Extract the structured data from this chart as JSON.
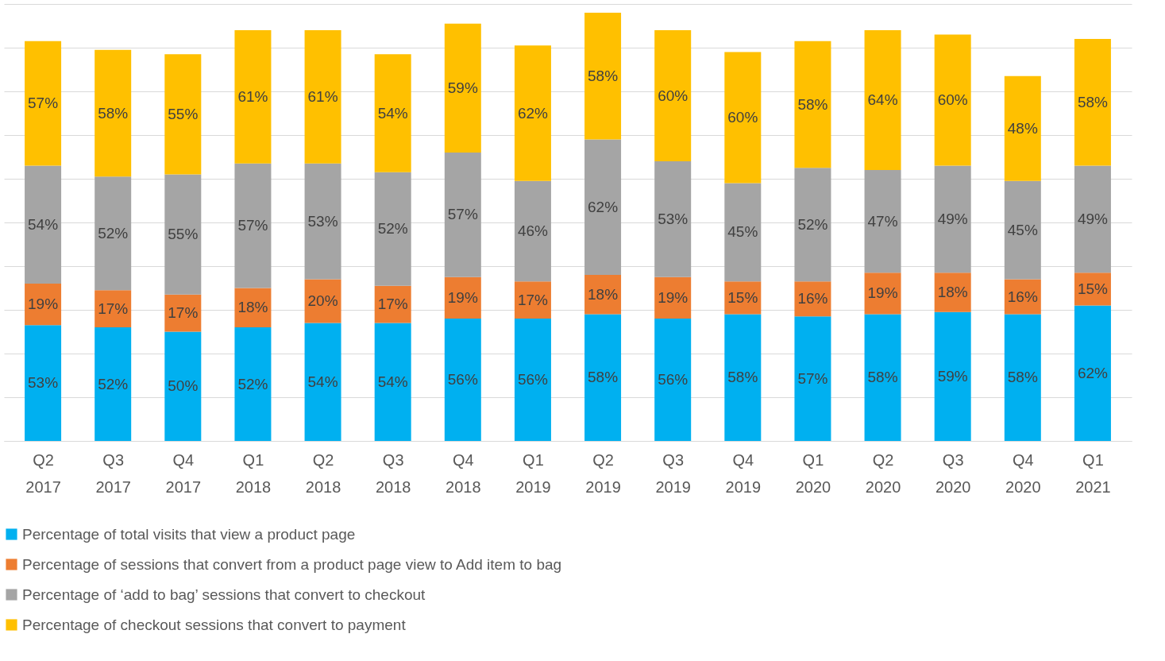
{
  "chart_data": {
    "type": "bar",
    "stacked": true,
    "categories": [
      "Q2 2017",
      "Q3 2017",
      "Q4 2017",
      "Q1 2018",
      "Q2 2018",
      "Q3 2018",
      "Q4 2018",
      "Q1 2019",
      "Q2 2019",
      "Q3 2019",
      "Q4 2019",
      "Q1 2020",
      "Q2 2020",
      "Q3 2020",
      "Q4 2020",
      "Q1 2021"
    ],
    "series": [
      {
        "name": "Percentage of total visits that view a product page",
        "color": "#00b0f0",
        "values": [
          53,
          52,
          50,
          52,
          54,
          54,
          56,
          56,
          58,
          56,
          58,
          57,
          58,
          59,
          58,
          62
        ],
        "value_labels": [
          "53%",
          "52%",
          "50%",
          "52%",
          "54%",
          "54%",
          "56%",
          "56%",
          "58%",
          "56%",
          "58%",
          "57%",
          "58%",
          "59%",
          "58%",
          "62%"
        ]
      },
      {
        "name": "Percentage of sessions that convert from a product page view to Add item to bag",
        "color": "#ed7d31",
        "values": [
          19,
          17,
          17,
          18,
          20,
          17,
          19,
          17,
          18,
          19,
          15,
          16,
          19,
          18,
          16,
          15
        ],
        "value_labels": [
          "19%",
          "17%",
          "17%",
          "18%",
          "20%",
          "17%",
          "19%",
          "17%",
          "18%",
          "19%",
          "15%",
          "16%",
          "19%",
          "18%",
          "16%",
          "15%"
        ]
      },
      {
        "name": "Percentage of ‘add to bag’ sessions that convert to checkout",
        "color": "#a5a5a5",
        "values": [
          54,
          52,
          55,
          57,
          53,
          52,
          57,
          46,
          62,
          53,
          45,
          52,
          47,
          49,
          45,
          49
        ],
        "value_labels": [
          "54%",
          "52%",
          "55%",
          "57%",
          "53%",
          "52%",
          "57%",
          "46%",
          "62%",
          "53%",
          "45%",
          "52%",
          "47%",
          "49%",
          "45%",
          "49%"
        ]
      },
      {
        "name": "Percentage of checkout sessions that convert to payment",
        "color": "#ffc000",
        "values": [
          57,
          58,
          55,
          61,
          61,
          54,
          59,
          62,
          58,
          60,
          60,
          58,
          64,
          60,
          48,
          58
        ],
        "value_labels": [
          "57%",
          "58%",
          "55%",
          "61%",
          "61%",
          "54%",
          "59%",
          "62%",
          "58%",
          "60%",
          "60%",
          "58%",
          "64%",
          "60%",
          "48%",
          "58%"
        ]
      }
    ],
    "ylim": [
      0,
      200
    ],
    "yticks": [
      {
        "value": 0,
        "label": null
      },
      {
        "value": 20,
        "label": null
      },
      {
        "value": 40,
        "label": null
      },
      {
        "value": 60,
        "label": null
      },
      {
        "value": 80,
        "label": null
      },
      {
        "value": 100,
        "label": null
      },
      {
        "value": 120,
        "label": null
      },
      {
        "value": 140,
        "label": null
      },
      {
        "value": 160,
        "label": null
      },
      {
        "value": 180,
        "label": null
      },
      {
        "value": 200,
        "label": null
      }
    ],
    "grid": "y",
    "legend": "bottom",
    "tick_labels": "x"
  }
}
